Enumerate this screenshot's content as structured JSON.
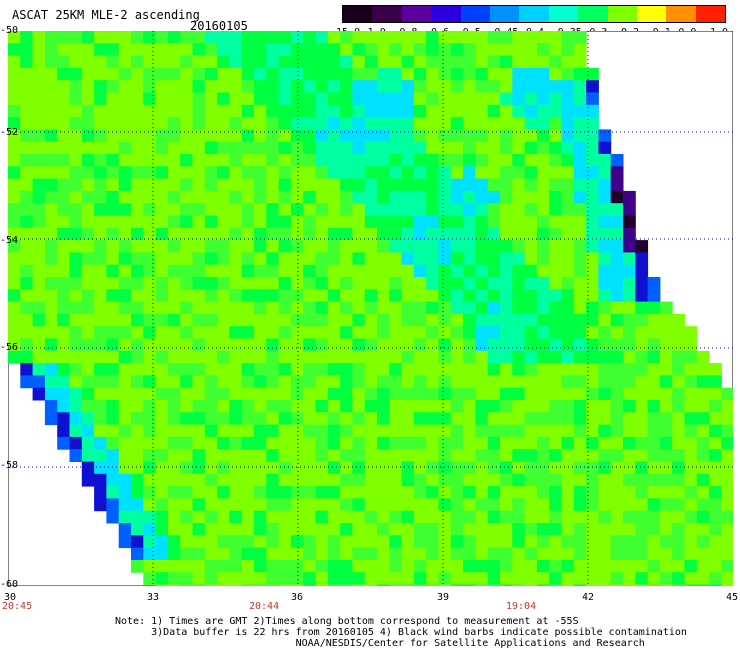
{
  "header": {
    "title": "ASCAT 25KM MLE-2 ascending",
    "date": "20160105"
  },
  "colorbar": {
    "labels": [
      "-15.0",
      "-1.0",
      "-0.8",
      "-0.6",
      "-0.5",
      "-0.45",
      "-0.4",
      "-0.35",
      "-0.3",
      "-0.2",
      "-0.1",
      "0.0",
      "1.0"
    ],
    "colors": [
      "#1a001a",
      "#3a004a",
      "#5a00a0",
      "#2a00e0",
      "#0040ff",
      "#0090ff",
      "#00d0ff",
      "#00ffd0",
      "#00ff60",
      "#80ff00",
      "#ffff00",
      "#ff9000",
      "#ff2000"
    ]
  },
  "map": {
    "lat_labels": [
      "-50",
      "-52",
      "-54",
      "-56",
      "-58",
      "-60"
    ],
    "lon_labels": [
      "30",
      "33",
      "36",
      "39",
      "42",
      "45"
    ],
    "time_labels": [
      "20:45",
      "20:44",
      "19:04"
    ],
    "grid_color": "#0000aa",
    "palette": {
      "lime": "#80ff00",
      "green": "#40ff30",
      "bright_green": "#00ff40",
      "aqua": "#00ffa0",
      "cyan": "#00e0ff",
      "blue": "#0060ff",
      "deep_blue": "#1010d0",
      "purple": "#40008a",
      "dark": "#20002a"
    }
  },
  "notes": [
    "Note: 1) Times are GMT 2)Times along bottom correspond to measurement at -55S",
    "      3)Data buffer is 22 hrs from 20160105 4) Black wind barbs indicate possible contamination",
    "                              NOAA/NESDIS/Center for Satellite Applications and Research"
  ]
}
